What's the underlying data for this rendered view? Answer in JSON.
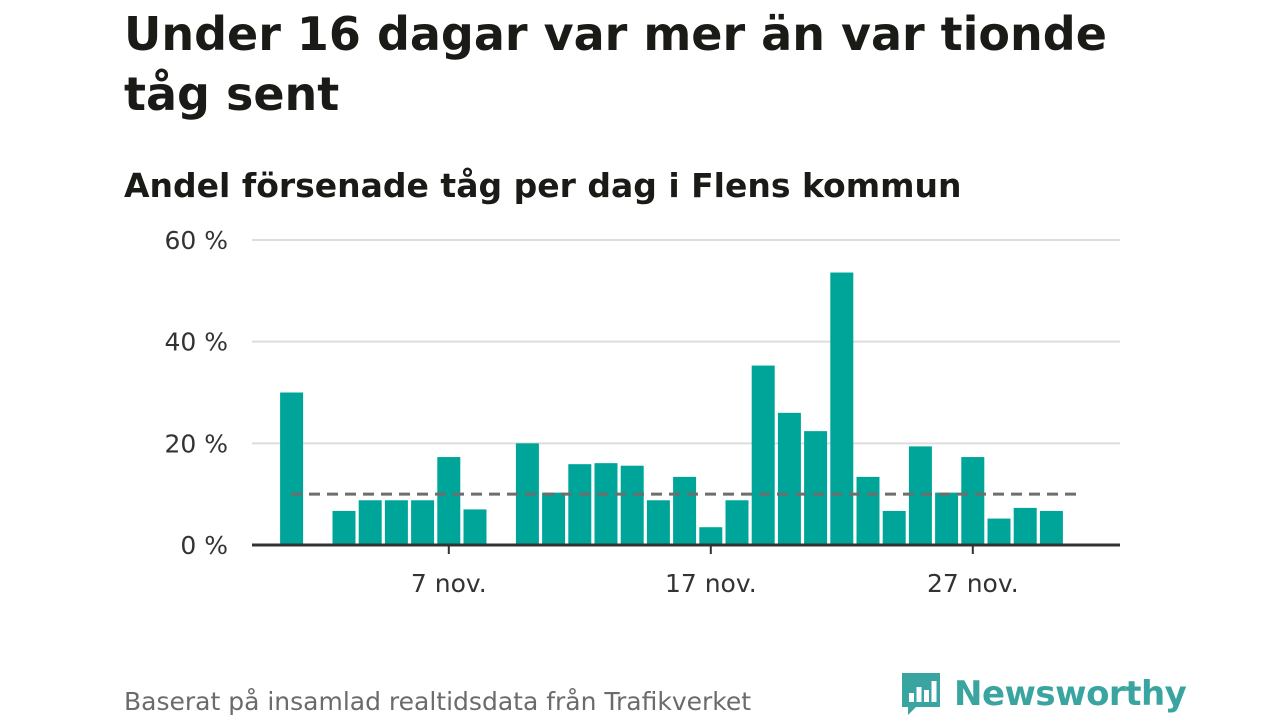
{
  "header": {
    "title": "Under 16 dagar var mer än var tionde tåg sent",
    "subtitle": "Andel försenade tåg per dag i Flens kommun"
  },
  "footer": {
    "source": "Baserat på insamlad realtidsdata från Trafikverket",
    "brand": "Newsworthy",
    "brand_icon": "newsworthy-logo-icon",
    "brand_color": "#3aa5a0"
  },
  "chart_data": {
    "type": "bar",
    "x": [
      "2023-11-01",
      "2023-11-02",
      "2023-11-03",
      "2023-11-04",
      "2023-11-05",
      "2023-11-06",
      "2023-11-07",
      "2023-11-08",
      "2023-11-09",
      "2023-11-10",
      "2023-11-11",
      "2023-11-12",
      "2023-11-13",
      "2023-11-14",
      "2023-11-15",
      "2023-11-16",
      "2023-11-17",
      "2023-11-18",
      "2023-11-19",
      "2023-11-20",
      "2023-11-21",
      "2023-11-22",
      "2023-11-23",
      "2023-11-24",
      "2023-11-25",
      "2023-11-26",
      "2023-11-27",
      "2023-11-28",
      "2023-11-29",
      "2023-11-30"
    ],
    "values": [
      30,
      null,
      6.7,
      8.8,
      8.8,
      8.8,
      17.3,
      7,
      null,
      20,
      10.3,
      15.9,
      16.1,
      15.6,
      8.8,
      13.4,
      3.5,
      8.8,
      35.3,
      26,
      22.4,
      53.6,
      13.4,
      6.7,
      19.4,
      10.3,
      17.3,
      5.2,
      7.3,
      6.7
    ],
    "reference_line": 10,
    "ylim": [
      0,
      60
    ],
    "y_ticks": [
      0,
      20,
      40,
      60
    ],
    "y_tick_labels": [
      "0 %",
      "20 %",
      "40 %",
      "60 %"
    ],
    "x_ticks": [
      "2023-11-07",
      "2023-11-17",
      "2023-11-27"
    ],
    "x_tick_labels": [
      "7 nov.",
      "17 nov.",
      "27 nov."
    ],
    "bar_color": "#00a599",
    "reference_line_color": "#6e6e6e",
    "grid": true,
    "title": "Andel försenade tåg per dag i Flens kommun",
    "xlabel": "",
    "ylabel": ""
  }
}
